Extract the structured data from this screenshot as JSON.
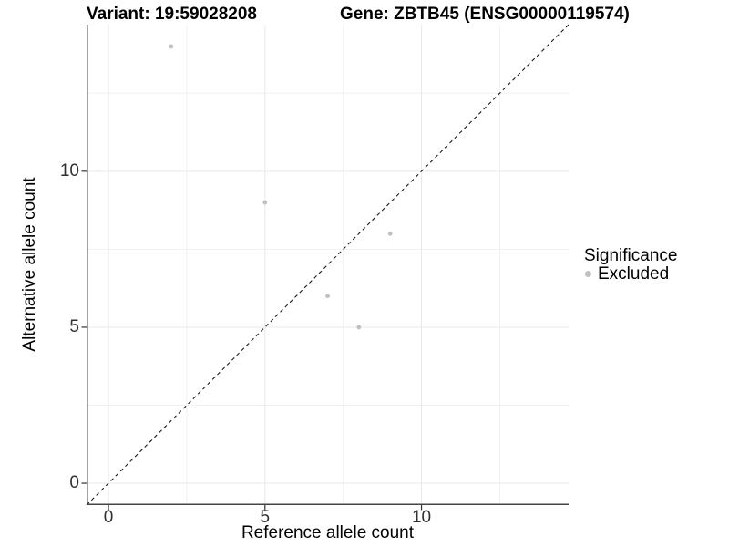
{
  "titles": {
    "variant": "Variant: 19:59028208",
    "gene": "Gene: ZBTB45 (ENSG00000119574)"
  },
  "chart_data": {
    "type": "scatter",
    "title": "Variant: 19:59028208  |  Gene: ZBTB45 (ENSG00000119574)",
    "xlabel": "Reference allele count",
    "ylabel": "Alternative allele count",
    "xlim": [
      -0.7,
      14.7
    ],
    "ylim": [
      -0.7,
      14.7
    ],
    "grid": {
      "show": true,
      "major": [
        0,
        5,
        10
      ],
      "minor": [
        2.5,
        7.5,
        12.5
      ]
    },
    "x_ticks": [
      {
        "value": 0,
        "label": "0"
      },
      {
        "value": 5,
        "label": "5"
      },
      {
        "value": 10,
        "label": "10"
      }
    ],
    "y_ticks": [
      {
        "value": 0,
        "label": "0"
      },
      {
        "value": 5,
        "label": "5"
      },
      {
        "value": 10,
        "label": "10"
      }
    ],
    "identity_line": {
      "slope": 1,
      "intercept": 0,
      "style": "dashed",
      "color": "#1a1a1a"
    },
    "series": [
      {
        "name": "Excluded",
        "color": "#c1c1c1",
        "points": [
          [
            2,
            14
          ],
          [
            5,
            9
          ],
          [
            7,
            6
          ],
          [
            8,
            5
          ],
          [
            9,
            8
          ]
        ]
      }
    ],
    "legend": {
      "title": "Significance",
      "position": "right",
      "entries": [
        {
          "label": "Excluded",
          "color": "#c1c1c1"
        }
      ]
    }
  },
  "colors": {
    "background": "#ffffff",
    "grid_major": "#e9e9e9",
    "grid_minor": "#f1f1f1",
    "axis_line": "#454545",
    "tick_mark": "#333333",
    "point": "#c1c1c1",
    "dashed_line": "#1a1a1a"
  }
}
